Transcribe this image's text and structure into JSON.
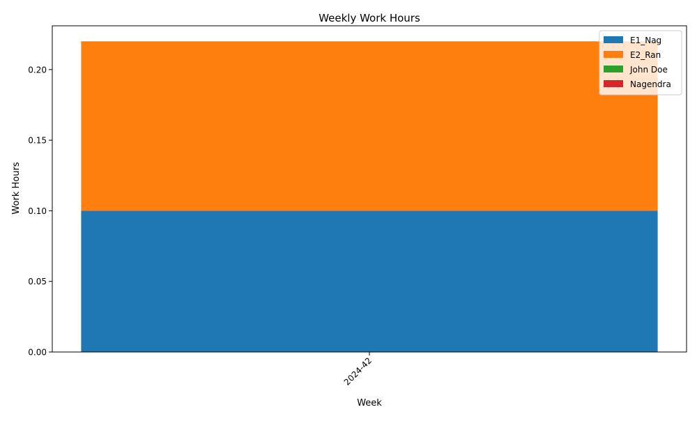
{
  "chart_data": {
    "type": "bar",
    "stacked": true,
    "title": "Weekly Work Hours",
    "xlabel": "Week",
    "ylabel": "Work Hours",
    "categories": [
      "2024-42"
    ],
    "ylim": [
      0,
      0.231
    ],
    "yticks": [
      0.0,
      0.05,
      0.1,
      0.15,
      0.2
    ],
    "ytick_labels": [
      "0.00",
      "0.05",
      "0.10",
      "0.15",
      "0.20"
    ],
    "xtick_rotation": 45,
    "grid": false,
    "legend_position": "top-right",
    "series": [
      {
        "name": "E1_Nag",
        "values": [
          0.1
        ],
        "color": "#1f77b4"
      },
      {
        "name": "E2_Ran",
        "values": [
          0.12
        ],
        "color": "#ff7f0e"
      },
      {
        "name": "John Doe",
        "values": [
          0.0
        ],
        "color": "#2ca02c"
      },
      {
        "name": "Nagendra",
        "values": [
          0.0
        ],
        "color": "#d62728"
      }
    ]
  }
}
